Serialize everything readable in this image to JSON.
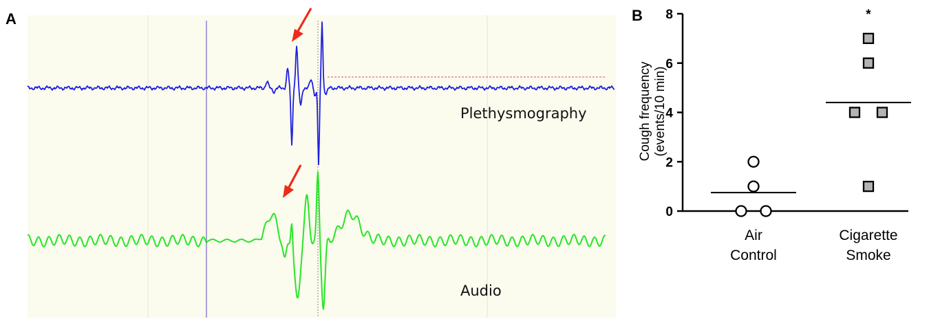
{
  "panel_a": {
    "letter": "A",
    "colors": {
      "panel_bg": "#fbfbee",
      "plethysmography": "#1f1fe0",
      "audio": "#26e626",
      "arrow": "#ee2a1a",
      "marker": "#9a8ad6",
      "threshold": "#e05050"
    },
    "traces": [
      {
        "label": "Plethysmography"
      },
      {
        "label": "Audio"
      }
    ]
  },
  "chart_data": {
    "type": "scatter",
    "panel": "B",
    "ylabel_line1": "Cough frequency",
    "ylabel_line2": "(events/10 min)",
    "ylim": [
      0,
      8
    ],
    "yticks": [
      0,
      2,
      4,
      6,
      8
    ],
    "categories": [
      {
        "line1": "Air",
        "line2": "Control"
      },
      {
        "line1": "Cigarette",
        "line2": "Smoke"
      }
    ],
    "series": [
      {
        "category": 0,
        "marker": "circle",
        "fill": "#ffffff",
        "points": [
          2,
          1,
          0,
          0
        ],
        "mean": 0.75
      },
      {
        "category": 1,
        "marker": "square",
        "fill": "#b3b3b3",
        "points": [
          7,
          6,
          4,
          4,
          1
        ],
        "mean": 4.4
      }
    ],
    "annotations": [
      {
        "category": 1,
        "text": "*"
      }
    ]
  }
}
